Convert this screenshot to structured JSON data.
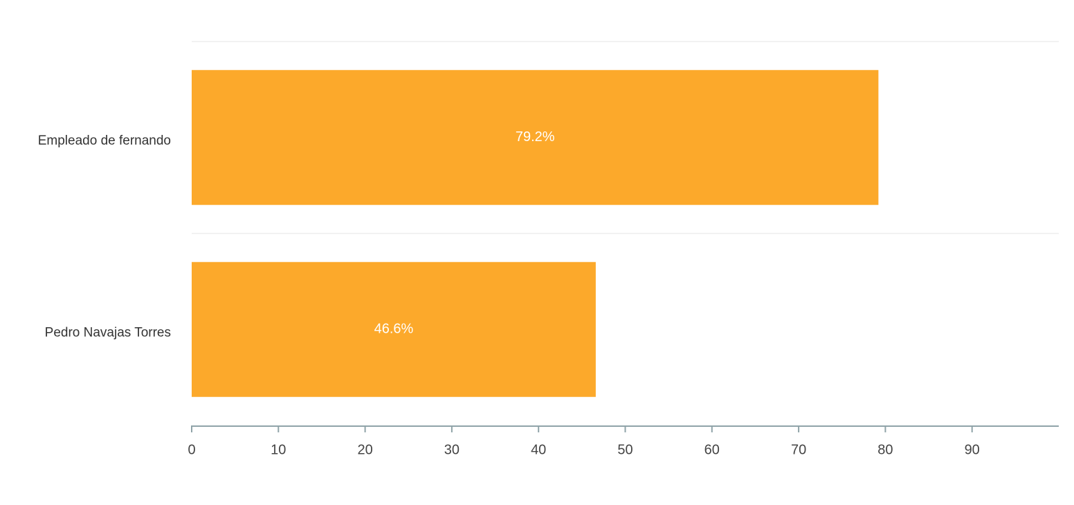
{
  "chart_data": {
    "type": "bar",
    "orientation": "horizontal",
    "categories": [
      "Empleado de fernando",
      "Pedro Navajas Torres"
    ],
    "values": [
      79.2,
      46.6
    ],
    "value_labels": [
      "79.2%",
      "46.6%"
    ],
    "color": "#fca92b",
    "xlim": [
      0,
      100
    ],
    "xticks": [
      0,
      10,
      20,
      30,
      40,
      50,
      60,
      70,
      80,
      90
    ]
  }
}
